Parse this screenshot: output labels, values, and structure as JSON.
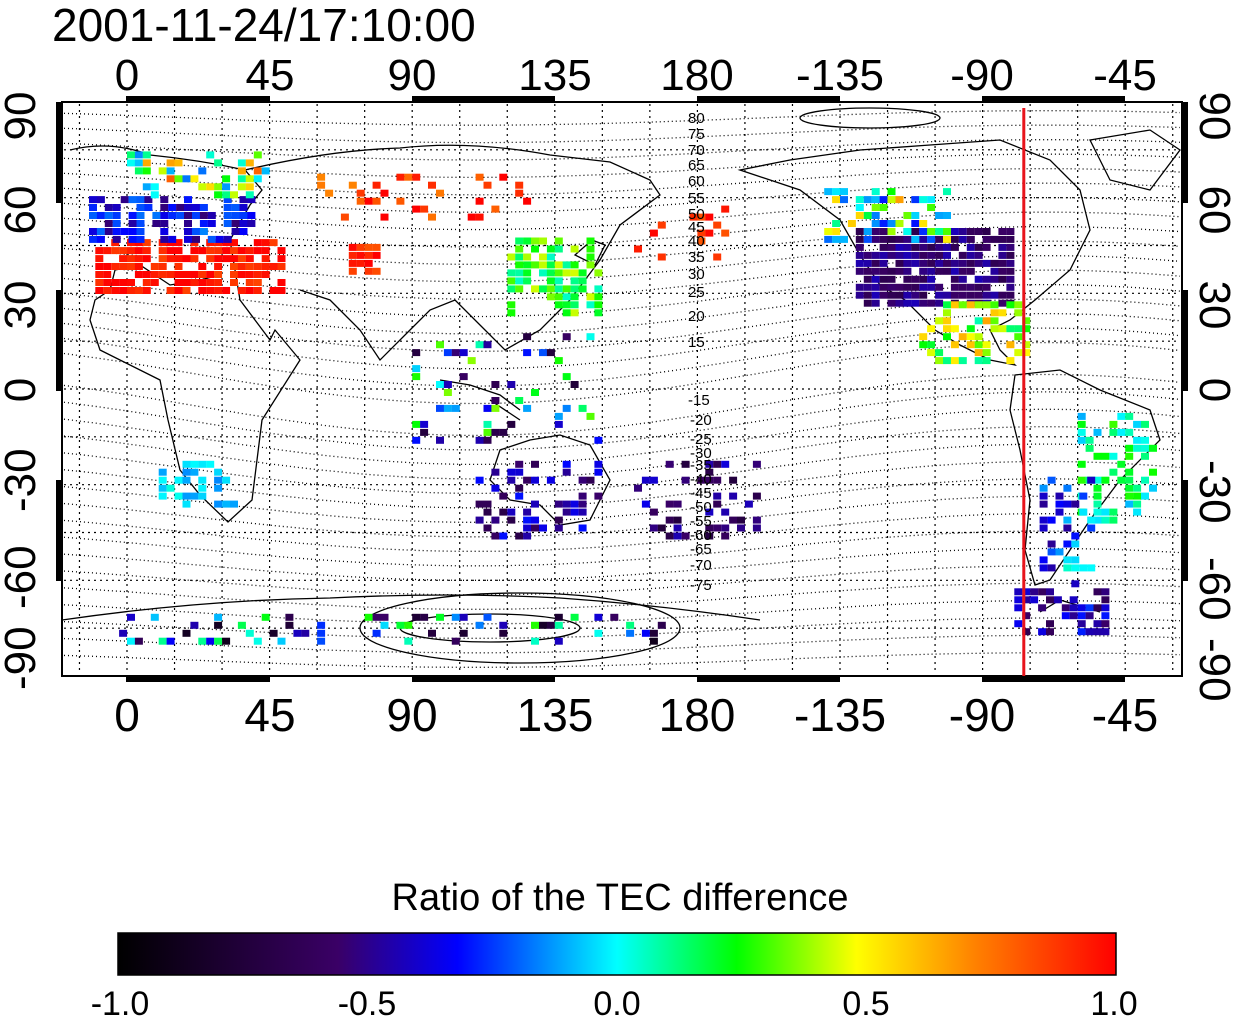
{
  "title": "2001-11-24/17:10:00",
  "map": {
    "longitude_ticks": [
      "0",
      "45",
      "90",
      "135",
      "180",
      "-135",
      "-90",
      "-45"
    ],
    "latitude_ticks": [
      "90",
      "60",
      "30",
      "0",
      "-30",
      "-60",
      "-90"
    ],
    "grid": true,
    "meridian_marker": {
      "longitude": -77,
      "color": "#e8141c"
    },
    "contour_labels_north": [
      "80",
      "75",
      "70",
      "65",
      "60",
      "55",
      "50",
      "45",
      "40",
      "35",
      "30",
      "25",
      "20",
      "15"
    ],
    "contour_labels_south": [
      "-15",
      "-20",
      "-25",
      "-30",
      "-35",
      "-40",
      "-45",
      "-50",
      "-55",
      "-60",
      "-65",
      "-70",
      "-75"
    ]
  },
  "colorbar": {
    "title": "Ratio of the TEC difference",
    "min": -1.0,
    "max": 1.0,
    "tick_labels": [
      "-1.0",
      "-0.5",
      "0.0",
      "0.5",
      "1.0"
    ],
    "colors": [
      "#000000",
      "#3a0066",
      "#0000ff",
      "#00ffff",
      "#00ff00",
      "#ffff00",
      "#ff0000"
    ]
  }
}
